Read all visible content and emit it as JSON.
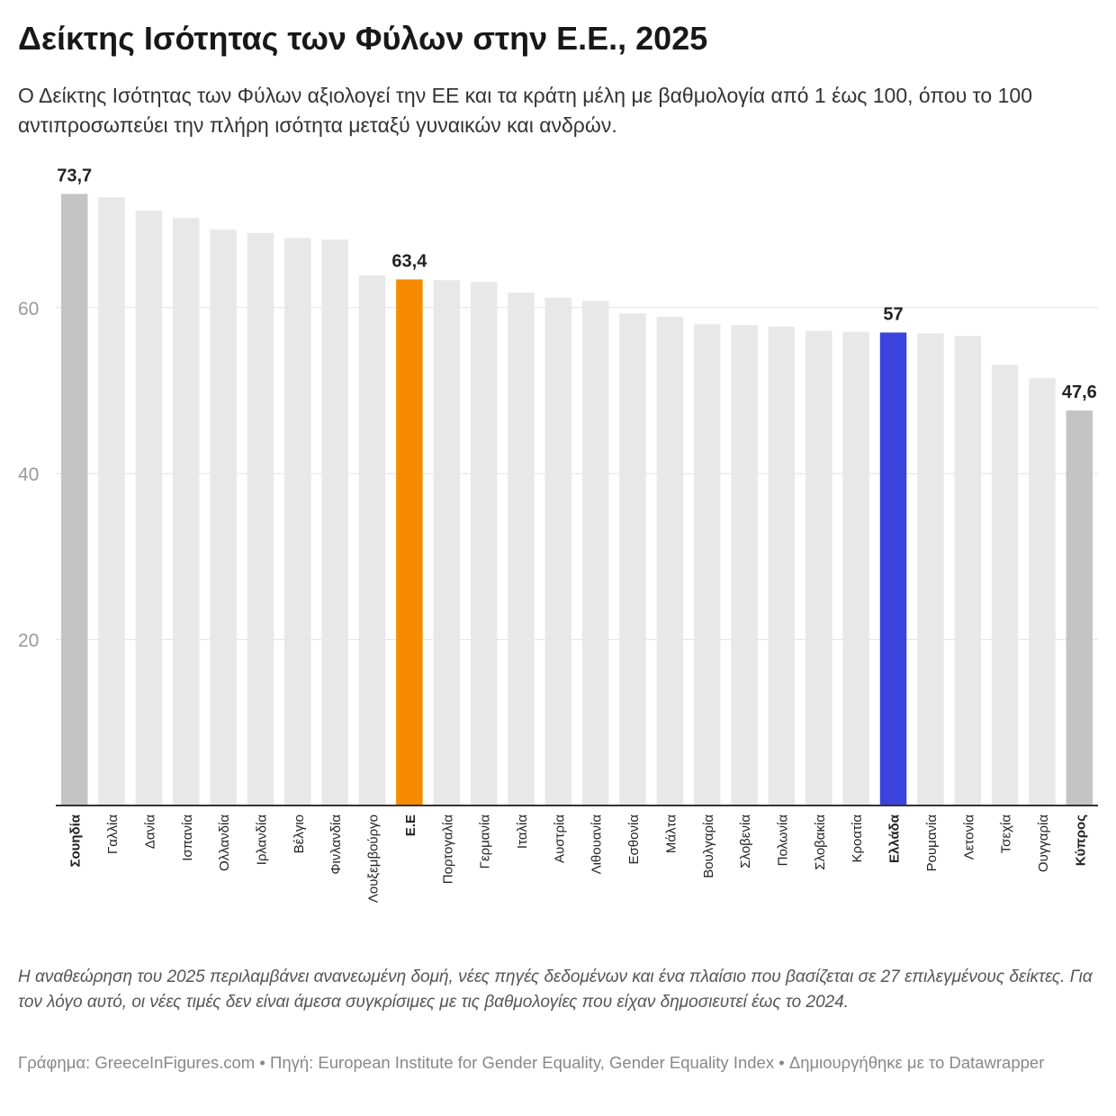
{
  "title": "Δείκτης Ισότητας των Φύλων στην Ε.Ε., 2025",
  "subtitle": "Ο Δείκτης Ισότητας των Φύλων αξιολογεί την ΕΕ και τα κράτη μέλη με βαθμολογία από 1 έως 100, όπου το 100 αντιπροσωπεύει την πλήρη ισότητα μεταξύ γυναικών και ανδρών.",
  "note": "Η αναθεώρηση του 2025 περιλαμβάνει ανανεωμένη δομή, νέες πηγές δεδομένων και ένα πλαίσιο που βασίζεται σε 27 επιλεγμένους δείκτες. Για τον λόγο αυτό, οι νέες τιμές δεν είναι άμεσα συγκρίσιμες με τις βαθμολογίες που είχαν δημοσιευτεί έως το 2024.",
  "footer": "Γράφημα: GreeceInFigures.com • Πηγή: European Institute for Gender Equality, Gender Equality Index  • Δημιουργήθηκε με το Datawrapper",
  "chart_data": {
    "type": "bar",
    "title": "Δείκτης Ισότητας των Φύλων στην Ε.Ε., 2025",
    "categories": [
      "Σουηδία",
      "Γαλλία",
      "Δανία",
      "Ισπανία",
      "Ολλανδία",
      "Ιρλανδία",
      "Βέλγιο",
      "Φινλανδία",
      "Λουξεμβούργο",
      "Ε.Ε",
      "Πορτογαλία",
      "Γερμανία",
      "Ιταλία",
      "Αυστρία",
      "Λιθουανία",
      "Εσθονία",
      "Μάλτα",
      "Βουλγαρία",
      "Σλοβενία",
      "Πολωνία",
      "Σλοβακία",
      "Κροατία",
      "Ελλάδα",
      "Ρουμανία",
      "Λετονία",
      "Τσεχία",
      "Ουγγαρία",
      "Κύπρος"
    ],
    "values": [
      73.7,
      73.3,
      71.7,
      70.8,
      69.4,
      69.0,
      68.4,
      68.2,
      63.9,
      63.4,
      63.3,
      63.1,
      61.8,
      61.2,
      60.8,
      59.3,
      58.9,
      58.0,
      57.9,
      57.7,
      57.2,
      57.1,
      57.0,
      56.9,
      56.6,
      53.1,
      51.5,
      47.6
    ],
    "data_labels": {
      "Σουηδία": "73,7",
      "Ε.Ε": "63,4",
      "Ελλάδα": "57",
      "Κύπρος": "47,6"
    },
    "bold_categories": [
      "Σουηδία",
      "Ε.Ε",
      "Ελλάδα",
      "Κύπρος"
    ],
    "colors": {
      "default": "#e8e8e8",
      "extreme": "#c4c4c4",
      "eu": "#f68b00",
      "greece": "#3a43dc"
    },
    "highlight": {
      "Σουηδία": "extreme",
      "Κύπρος": "extreme",
      "Ε.Ε": "eu",
      "Ελλάδα": "greece"
    },
    "yticks": [
      20,
      40,
      60
    ],
    "ylim": [
      0,
      80
    ],
    "grid": true,
    "xlabel": "",
    "ylabel": ""
  }
}
